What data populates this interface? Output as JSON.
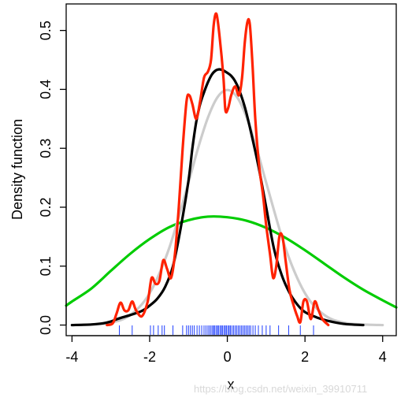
{
  "chart_data": {
    "type": "line",
    "title": "",
    "xlabel": "x",
    "ylabel": "Density function",
    "xlim": [
      -4.15,
      4.35
    ],
    "ylim": [
      -0.018,
      0.545
    ],
    "xticks": [
      "-4",
      "-2",
      "0",
      "2",
      "4"
    ],
    "xtick_values": [
      -4,
      -2,
      0,
      2,
      4
    ],
    "yticks": [
      "0.0",
      "0.1",
      "0.2",
      "0.3",
      "0.4",
      "0.5"
    ],
    "ytick_values": [
      0,
      0.1,
      0.2,
      0.3,
      0.4,
      0.5
    ],
    "grid": false,
    "legend": "none",
    "series": [
      {
        "color": "#00cc00",
        "points": [
          [
            -4.15,
            0.033
          ],
          [
            -4.0,
            0.04
          ],
          [
            -3.5,
            0.062
          ],
          [
            -3.0,
            0.092
          ],
          [
            -2.5,
            0.121
          ],
          [
            -2.0,
            0.146
          ],
          [
            -1.5,
            0.166
          ],
          [
            -1.0,
            0.178
          ],
          [
            -0.5,
            0.184
          ],
          [
            0.0,
            0.183
          ],
          [
            0.5,
            0.177
          ],
          [
            1.0,
            0.165
          ],
          [
            1.5,
            0.148
          ],
          [
            2.0,
            0.127
          ],
          [
            2.5,
            0.104
          ],
          [
            3.0,
            0.081
          ],
          [
            3.5,
            0.06
          ],
          [
            4.0,
            0.042
          ],
          [
            4.35,
            0.03
          ]
        ]
      },
      {
        "color": "#cccccc",
        "points": [
          [
            -4.0,
            0.0
          ],
          [
            -3.5,
            0.001
          ],
          [
            -3.0,
            0.004
          ],
          [
            -2.5,
            0.017
          ],
          [
            -2.0,
            0.054
          ],
          [
            -1.5,
            0.13
          ],
          [
            -1.0,
            0.242
          ],
          [
            -0.75,
            0.301
          ],
          [
            -0.5,
            0.352
          ],
          [
            -0.25,
            0.387
          ],
          [
            0.0,
            0.399
          ],
          [
            0.25,
            0.387
          ],
          [
            0.5,
            0.352
          ],
          [
            0.75,
            0.301
          ],
          [
            1.0,
            0.242
          ],
          [
            1.5,
            0.13
          ],
          [
            2.0,
            0.054
          ],
          [
            2.5,
            0.017
          ],
          [
            3.0,
            0.004
          ],
          [
            3.5,
            0.001
          ],
          [
            4.0,
            0.0
          ]
        ]
      },
      {
        "color": "#000000",
        "points": [
          [
            -4.0,
            0.0
          ],
          [
            -3.5,
            0.001
          ],
          [
            -3.2,
            0.003
          ],
          [
            -3.0,
            0.006
          ],
          [
            -2.8,
            0.011
          ],
          [
            -2.5,
            0.017
          ],
          [
            -2.2,
            0.024
          ],
          [
            -2.0,
            0.033
          ],
          [
            -1.8,
            0.045
          ],
          [
            -1.6,
            0.065
          ],
          [
            -1.4,
            0.1
          ],
          [
            -1.2,
            0.165
          ],
          [
            -1.0,
            0.245
          ],
          [
            -0.9,
            0.3
          ],
          [
            -0.8,
            0.345
          ],
          [
            -0.7,
            0.375
          ],
          [
            -0.6,
            0.395
          ],
          [
            -0.5,
            0.412
          ],
          [
            -0.4,
            0.425
          ],
          [
            -0.3,
            0.432
          ],
          [
            -0.2,
            0.434
          ],
          [
            -0.1,
            0.432
          ],
          [
            0.0,
            0.428
          ],
          [
            0.1,
            0.423
          ],
          [
            0.2,
            0.414
          ],
          [
            0.3,
            0.4
          ],
          [
            0.45,
            0.37
          ],
          [
            0.6,
            0.33
          ],
          [
            0.8,
            0.27
          ],
          [
            1.0,
            0.2
          ],
          [
            1.2,
            0.13
          ],
          [
            1.4,
            0.085
          ],
          [
            1.6,
            0.055
          ],
          [
            1.8,
            0.035
          ],
          [
            2.0,
            0.022
          ],
          [
            2.3,
            0.013
          ],
          [
            2.6,
            0.007
          ],
          [
            3.0,
            0.002
          ],
          [
            3.5,
            0.0
          ]
        ]
      },
      {
        "color": "#ff2200",
        "points": [
          [
            -3.1,
            0.0
          ],
          [
            -2.95,
            0.003
          ],
          [
            -2.85,
            0.02
          ],
          [
            -2.75,
            0.038
          ],
          [
            -2.65,
            0.025
          ],
          [
            -2.55,
            0.025
          ],
          [
            -2.45,
            0.04
          ],
          [
            -2.35,
            0.025
          ],
          [
            -2.2,
            0.015
          ],
          [
            -2.05,
            0.04
          ],
          [
            -1.95,
            0.08
          ],
          [
            -1.85,
            0.07
          ],
          [
            -1.75,
            0.075
          ],
          [
            -1.65,
            0.11
          ],
          [
            -1.55,
            0.095
          ],
          [
            -1.45,
            0.08
          ],
          [
            -1.35,
            0.12
          ],
          [
            -1.25,
            0.2
          ],
          [
            -1.15,
            0.3
          ],
          [
            -1.05,
            0.38
          ],
          [
            -0.98,
            0.39
          ],
          [
            -0.9,
            0.375
          ],
          [
            -0.8,
            0.35
          ],
          [
            -0.7,
            0.38
          ],
          [
            -0.6,
            0.42
          ],
          [
            -0.5,
            0.43
          ],
          [
            -0.42,
            0.45
          ],
          [
            -0.35,
            0.51
          ],
          [
            -0.28,
            0.528
          ],
          [
            -0.2,
            0.49
          ],
          [
            -0.1,
            0.42
          ],
          [
            -0.05,
            0.365
          ],
          [
            0.02,
            0.368
          ],
          [
            0.1,
            0.39
          ],
          [
            0.2,
            0.405
          ],
          [
            0.3,
            0.39
          ],
          [
            0.38,
            0.42
          ],
          [
            0.45,
            0.48
          ],
          [
            0.52,
            0.515
          ],
          [
            0.58,
            0.51
          ],
          [
            0.65,
            0.44
          ],
          [
            0.72,
            0.35
          ],
          [
            0.82,
            0.27
          ],
          [
            0.92,
            0.22
          ],
          [
            1.0,
            0.17
          ],
          [
            1.1,
            0.12
          ],
          [
            1.18,
            0.08
          ],
          [
            1.26,
            0.1
          ],
          [
            1.34,
            0.15
          ],
          [
            1.42,
            0.15
          ],
          [
            1.5,
            0.11
          ],
          [
            1.6,
            0.06
          ],
          [
            1.7,
            0.035
          ],
          [
            1.8,
            0.015
          ],
          [
            1.88,
            0.005
          ],
          [
            1.96,
            0.04
          ],
          [
            2.05,
            0.04
          ],
          [
            2.15,
            0.01
          ],
          [
            2.25,
            0.04
          ],
          [
            2.35,
            0.025
          ],
          [
            2.45,
            0.01
          ],
          [
            2.6,
            0.0
          ]
        ]
      }
    ],
    "rug": [
      -2.78,
      -2.45,
      -1.98,
      -1.9,
      -1.78,
      -1.68,
      -1.62,
      -1.4,
      -1.15,
      -1.05,
      -1.0,
      -0.95,
      -0.9,
      -0.85,
      -0.78,
      -0.72,
      -0.66,
      -0.6,
      -0.55,
      -0.5,
      -0.46,
      -0.42,
      -0.38,
      -0.35,
      -0.32,
      -0.28,
      -0.25,
      -0.22,
      -0.18,
      -0.15,
      -0.12,
      -0.08,
      -0.05,
      -0.02,
      0.02,
      0.05,
      0.08,
      0.12,
      0.16,
      0.2,
      0.24,
      0.28,
      0.32,
      0.36,
      0.4,
      0.44,
      0.48,
      0.52,
      0.56,
      0.6,
      0.66,
      0.72,
      0.8,
      0.9,
      1.0,
      1.1,
      1.32,
      1.58,
      1.88,
      2.22
    ]
  },
  "watermark": "https://blog.csdn.net/weixin_39910711"
}
